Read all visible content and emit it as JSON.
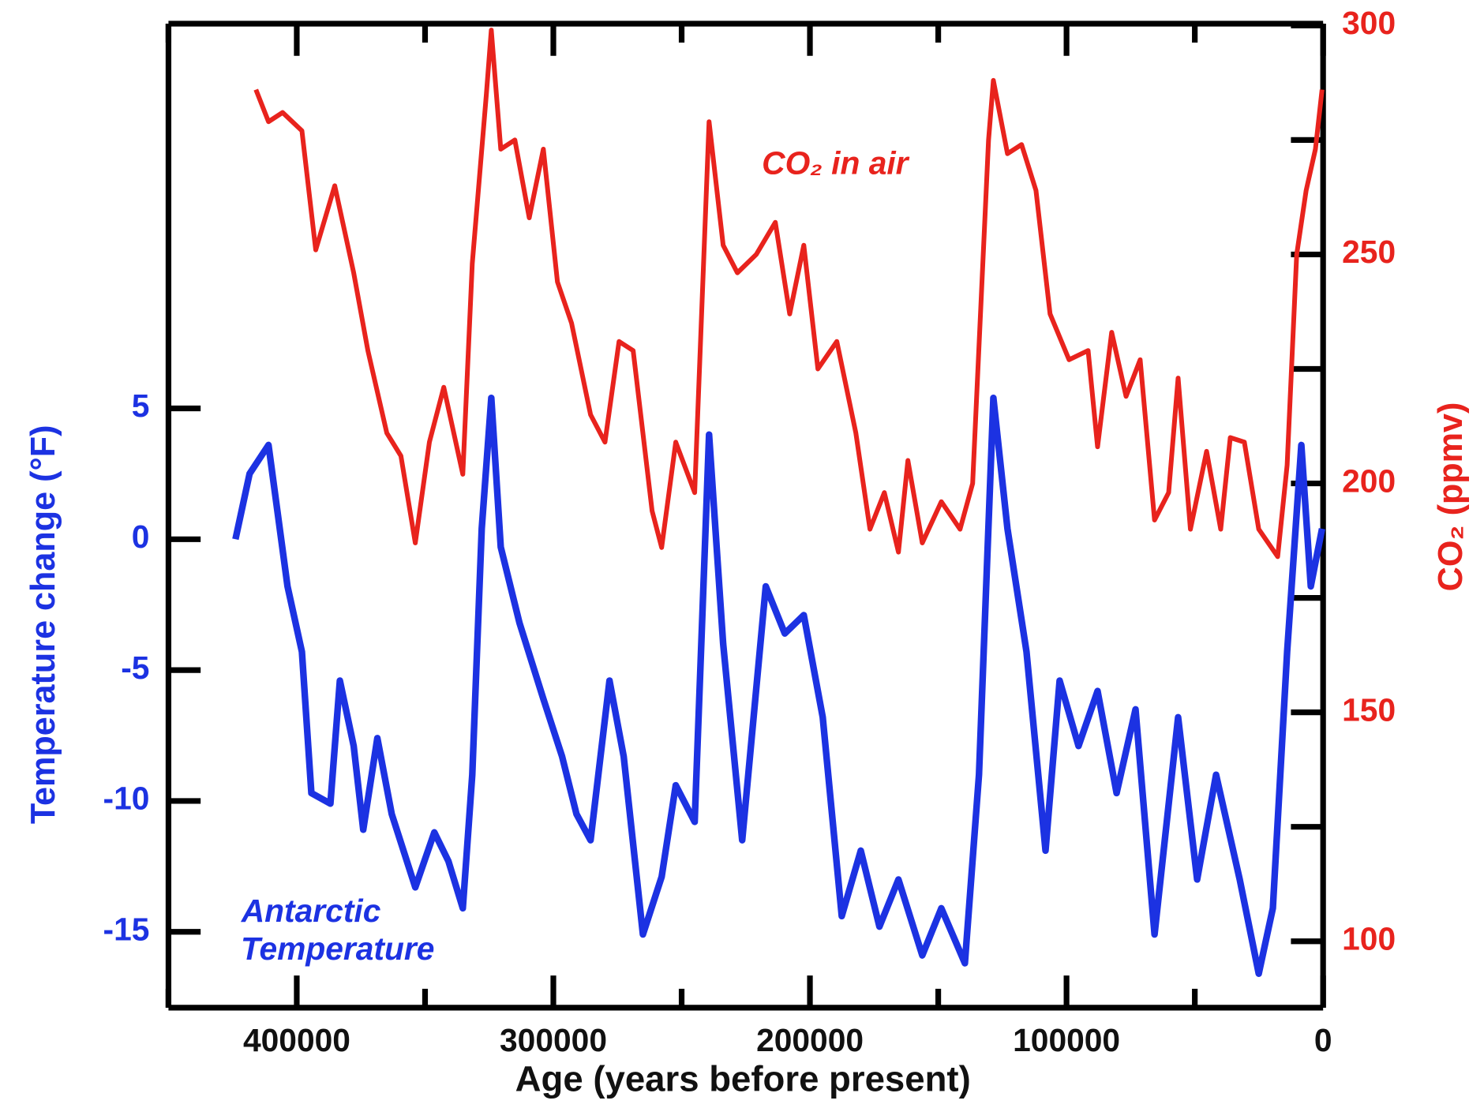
{
  "chart_data": {
    "type": "line",
    "x_label": "Age (years before present)",
    "y_label": "Temperature change (°F)",
    "y2_label": "CO₂ (ppmv)",
    "xlim": [
      450000,
      0
    ],
    "xticks": [
      400000,
      300000,
      200000,
      100000,
      0
    ],
    "x_minor_ticks": [
      450000,
      350000,
      250000,
      150000,
      50000
    ],
    "ylim": [
      -17.9,
      19.7
    ],
    "yticks": [
      5,
      0,
      -5,
      -10,
      -15
    ],
    "y2lim": [
      85.5,
      300.4
    ],
    "y2ticks": [
      300,
      250,
      200,
      150,
      100
    ],
    "y2_minor_ticks": [
      275,
      225,
      175,
      125
    ],
    "series": [
      {
        "name": "CO₂ in air",
        "color": "#e8231d",
        "axis": "y2",
        "x": [
          415900,
          411000,
          405500,
          398000,
          392600,
          385200,
          377800,
          372300,
          364900,
          359400,
          353800,
          348300,
          342700,
          335300,
          331600,
          326100,
          324200,
          320500,
          315000,
          309400,
          303900,
          298400,
          292900,
          285500,
          279900,
          274400,
          268900,
          261500,
          257800,
          252300,
          244900,
          239300,
          233800,
          228300,
          220900,
          213500,
          207900,
          202400,
          196900,
          189500,
          182100,
          176600,
          171000,
          165500,
          161800,
          156200,
          148800,
          141500,
          136600,
          130400,
          128500,
          123000,
          117500,
          111900,
          106400,
          99000,
          91600,
          87900,
          82400,
          76800,
          71300,
          65700,
          60200,
          56500,
          51700,
          45400,
          39900,
          36200,
          30700,
          25100,
          17700,
          14000,
          10300,
          6600,
          3000,
          400
        ],
        "values": [
          286,
          279,
          281,
          277,
          251,
          265,
          246,
          229,
          211,
          206,
          187,
          209,
          221,
          202,
          248,
          285,
          299,
          273,
          275,
          258,
          273,
          244,
          235,
          215,
          209,
          231,
          229,
          194,
          186,
          209,
          198,
          279,
          252,
          246,
          250,
          257,
          237,
          252,
          225,
          231,
          211,
          190,
          198,
          185,
          205,
          187,
          196,
          190,
          200,
          275,
          288,
          272,
          274,
          264,
          237,
          227,
          229,
          208,
          233,
          219,
          227,
          192,
          198,
          223,
          190,
          207,
          190,
          210,
          209,
          190,
          184,
          204,
          250,
          264,
          273,
          286
        ]
      },
      {
        "name": "Antarctic Temperature",
        "color": "#1c32e2",
        "axis": "y",
        "x": [
          423900,
          418400,
          411000,
          403600,
          398000,
          394300,
          386900,
          383200,
          377800,
          374100,
          368600,
          363000,
          353800,
          346400,
          340900,
          335300,
          331600,
          327900,
          324200,
          320500,
          313200,
          303900,
          296600,
          291000,
          285500,
          278100,
          272600,
          265100,
          257800,
          252300,
          244900,
          239300,
          233800,
          226400,
          217200,
          209800,
          202400,
          195000,
          187600,
          180200,
          172900,
          165500,
          156200,
          148800,
          139600,
          134100,
          128500,
          123000,
          115600,
          108200,
          102700,
          95300,
          87900,
          80500,
          73100,
          65700,
          56500,
          49100,
          41700,
          32500,
          25100,
          19600,
          14000,
          8500,
          4800,
          400
        ],
        "values": [
          0.0,
          2.5,
          3.6,
          -1.8,
          -4.3,
          -9.7,
          -10.1,
          -5.4,
          -7.9,
          -11.1,
          -7.6,
          -10.5,
          -13.3,
          -11.2,
          -12.3,
          -14.1,
          -9.0,
          0.4,
          5.4,
          -0.3,
          -3.2,
          -6.1,
          -8.3,
          -10.5,
          -11.5,
          -5.4,
          -8.3,
          -15.1,
          -12.9,
          -9.4,
          -10.8,
          4.0,
          -4.0,
          -11.5,
          -1.8,
          -3.6,
          -2.9,
          -6.8,
          -14.4,
          -11.9,
          -14.8,
          -13.0,
          -15.9,
          -14.1,
          -16.2,
          -9.0,
          5.4,
          0.4,
          -4.3,
          -11.9,
          -5.4,
          -7.9,
          -5.8,
          -9.7,
          -6.5,
          -15.1,
          -6.8,
          -13.0,
          -9.0,
          -13.0,
          -16.6,
          -14.1,
          -4.3,
          3.6,
          -1.8,
          0.4
        ]
      }
    ]
  }
}
